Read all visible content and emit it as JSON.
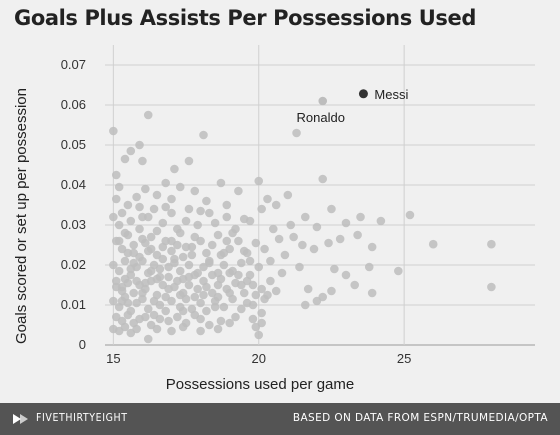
{
  "colors": {
    "background": "#f0f0f0",
    "grid": "#d0d0d0",
    "point": "#bdbdbd",
    "highlight": "#333333",
    "footer": "#545454"
  },
  "footer": {
    "brand": "FIVETHIRTYEIGHT",
    "logo_icon": "fivethirtyeight-logo-icon",
    "source": "BASED ON DATA FROM ESPN/TRUMEDIA/OPTA"
  },
  "chart_data": {
    "type": "scatter",
    "title": "Goals Plus Assists Per Possessions Used",
    "xlabel": "Possessions used per game",
    "ylabel": "Goals scored or set up per possession",
    "xlim": [
      14.3,
      29.5
    ],
    "ylim": [
      0,
      0.073
    ],
    "xticks": [
      15,
      20,
      25
    ],
    "xtick_labels": [
      "15",
      "20",
      "25"
    ],
    "yticks": [
      0,
      0.01,
      0.02,
      0.03,
      0.04,
      0.05,
      0.06,
      0.07
    ],
    "ytick_labels": [
      "0",
      "0.01",
      "0.02",
      "0.03",
      "0.04",
      "0.05",
      "0.06",
      "0.07"
    ],
    "grid": true,
    "highlighted": [
      {
        "label": "Messi",
        "x": 23.6,
        "y": 0.0628
      },
      {
        "label": "Ronaldo",
        "x": 22.2,
        "y": 0.061
      }
    ],
    "points": [
      [
        15.0,
        0.0535
      ],
      [
        15.1,
        0.0425
      ],
      [
        15.2,
        0.0395
      ],
      [
        15.4,
        0.0465
      ],
      [
        15.6,
        0.0485
      ],
      [
        15.9,
        0.05
      ],
      [
        16.2,
        0.0575
      ],
      [
        16.0,
        0.046
      ],
      [
        17.1,
        0.044
      ],
      [
        17.6,
        0.046
      ],
      [
        18.1,
        0.0525
      ],
      [
        15.1,
        0.0365
      ],
      [
        15.3,
        0.033
      ],
      [
        15.5,
        0.035
      ],
      [
        15.8,
        0.037
      ],
      [
        16.1,
        0.039
      ],
      [
        16.5,
        0.0375
      ],
      [
        16.8,
        0.0405
      ],
      [
        17.0,
        0.0365
      ],
      [
        17.3,
        0.0395
      ],
      [
        17.8,
        0.0385
      ],
      [
        18.2,
        0.036
      ],
      [
        18.7,
        0.0405
      ],
      [
        19.3,
        0.0385
      ],
      [
        20.0,
        0.041
      ],
      [
        20.3,
        0.0365
      ],
      [
        20.6,
        0.035
      ],
      [
        21.0,
        0.0375
      ],
      [
        21.3,
        0.053
      ],
      [
        22.2,
        0.0415
      ],
      [
        15.0,
        0.032
      ],
      [
        15.2,
        0.03
      ],
      [
        15.4,
        0.028
      ],
      [
        15.6,
        0.031
      ],
      [
        15.9,
        0.029
      ],
      [
        16.2,
        0.032
      ],
      [
        16.4,
        0.034
      ],
      [
        16.7,
        0.0305
      ],
      [
        17.0,
        0.033
      ],
      [
        17.2,
        0.029
      ],
      [
        17.5,
        0.031
      ],
      [
        17.9,
        0.03
      ],
      [
        18.3,
        0.033
      ],
      [
        18.5,
        0.0305
      ],
      [
        18.9,
        0.032
      ],
      [
        19.2,
        0.029
      ],
      [
        19.7,
        0.031
      ],
      [
        20.1,
        0.034
      ],
      [
        20.5,
        0.029
      ],
      [
        21.1,
        0.03
      ],
      [
        21.6,
        0.032
      ],
      [
        22.0,
        0.0295
      ],
      [
        22.5,
        0.034
      ],
      [
        23.0,
        0.0305
      ],
      [
        23.5,
        0.032
      ],
      [
        24.2,
        0.031
      ],
      [
        25.2,
        0.0325
      ],
      [
        15.1,
        0.026
      ],
      [
        15.3,
        0.024
      ],
      [
        15.5,
        0.023
      ],
      [
        15.7,
        0.025
      ],
      [
        15.9,
        0.022
      ],
      [
        16.1,
        0.0255
      ],
      [
        16.3,
        0.024
      ],
      [
        16.5,
        0.0225
      ],
      [
        16.8,
        0.026
      ],
      [
        17.0,
        0.0235
      ],
      [
        17.2,
        0.025
      ],
      [
        17.4,
        0.022
      ],
      [
        17.7,
        0.0245
      ],
      [
        18.0,
        0.026
      ],
      [
        18.2,
        0.023
      ],
      [
        18.4,
        0.025
      ],
      [
        18.7,
        0.0225
      ],
      [
        19.0,
        0.024
      ],
      [
        19.3,
        0.026
      ],
      [
        19.6,
        0.023
      ],
      [
        19.9,
        0.0255
      ],
      [
        20.2,
        0.024
      ],
      [
        20.7,
        0.0265
      ],
      [
        21.2,
        0.027
      ],
      [
        21.5,
        0.025
      ],
      [
        21.9,
        0.024
      ],
      [
        22.4,
        0.0255
      ],
      [
        22.8,
        0.0265
      ],
      [
        23.4,
        0.0275
      ],
      [
        23.9,
        0.0245
      ],
      [
        26.0,
        0.0252
      ],
      [
        28.0,
        0.0252
      ],
      [
        15.0,
        0.02
      ],
      [
        15.2,
        0.0185
      ],
      [
        15.4,
        0.021
      ],
      [
        15.6,
        0.0175
      ],
      [
        15.8,
        0.0195
      ],
      [
        16.0,
        0.021
      ],
      [
        16.2,
        0.018
      ],
      [
        16.4,
        0.02
      ],
      [
        16.6,
        0.019
      ],
      [
        16.9,
        0.017
      ],
      [
        17.1,
        0.0205
      ],
      [
        17.3,
        0.0185
      ],
      [
        17.6,
        0.02
      ],
      [
        17.8,
        0.0175
      ],
      [
        18.1,
        0.0195
      ],
      [
        18.3,
        0.021
      ],
      [
        18.6,
        0.018
      ],
      [
        18.8,
        0.02
      ],
      [
        19.1,
        0.0185
      ],
      [
        19.4,
        0.0205
      ],
      [
        19.7,
        0.0175
      ],
      [
        20.0,
        0.0195
      ],
      [
        20.4,
        0.021
      ],
      [
        20.8,
        0.018
      ],
      [
        21.4,
        0.0195
      ],
      [
        22.6,
        0.019
      ],
      [
        23.0,
        0.0175
      ],
      [
        23.8,
        0.0195
      ],
      [
        24.8,
        0.0185
      ],
      [
        15.1,
        0.016
      ],
      [
        15.3,
        0.0145
      ],
      [
        15.5,
        0.0155
      ],
      [
        15.7,
        0.013
      ],
      [
        15.9,
        0.015
      ],
      [
        16.1,
        0.014
      ],
      [
        16.3,
        0.016
      ],
      [
        16.5,
        0.0125
      ],
      [
        16.7,
        0.015
      ],
      [
        16.9,
        0.014
      ],
      [
        17.2,
        0.016
      ],
      [
        17.4,
        0.013
      ],
      [
        17.6,
        0.015
      ],
      [
        17.9,
        0.014
      ],
      [
        18.1,
        0.016
      ],
      [
        18.4,
        0.013
      ],
      [
        18.6,
        0.015
      ],
      [
        18.9,
        0.014
      ],
      [
        19.2,
        0.0155
      ],
      [
        19.5,
        0.013
      ],
      [
        19.8,
        0.015
      ],
      [
        20.1,
        0.014
      ],
      [
        20.4,
        0.016
      ],
      [
        21.7,
        0.014
      ],
      [
        22.2,
        0.012
      ],
      [
        22.5,
        0.0135
      ],
      [
        23.3,
        0.015
      ],
      [
        23.9,
        0.013
      ],
      [
        28.0,
        0.0145
      ],
      [
        15.0,
        0.011
      ],
      [
        15.2,
        0.0095
      ],
      [
        15.4,
        0.012
      ],
      [
        15.6,
        0.0085
      ],
      [
        15.8,
        0.0105
      ],
      [
        16.0,
        0.0115
      ],
      [
        16.2,
        0.009
      ],
      [
        16.4,
        0.011
      ],
      [
        16.6,
        0.01
      ],
      [
        16.8,
        0.0085
      ],
      [
        17.0,
        0.011
      ],
      [
        17.3,
        0.0095
      ],
      [
        17.5,
        0.0115
      ],
      [
        17.7,
        0.009
      ],
      [
        18.0,
        0.0105
      ],
      [
        18.2,
        0.0085
      ],
      [
        18.5,
        0.011
      ],
      [
        18.8,
        0.0095
      ],
      [
        19.1,
        0.0115
      ],
      [
        19.4,
        0.009
      ],
      [
        19.8,
        0.01
      ],
      [
        20.1,
        0.008
      ],
      [
        20.2,
        0.0115
      ],
      [
        21.6,
        0.01
      ],
      [
        22.0,
        0.011
      ],
      [
        15.1,
        0.007
      ],
      [
        15.3,
        0.006
      ],
      [
        15.5,
        0.0075
      ],
      [
        15.7,
        0.0055
      ],
      [
        15.9,
        0.0065
      ],
      [
        16.1,
        0.007
      ],
      [
        16.3,
        0.005
      ],
      [
        16.6,
        0.0065
      ],
      [
        16.9,
        0.006
      ],
      [
        17.2,
        0.007
      ],
      [
        17.5,
        0.0055
      ],
      [
        18.0,
        0.0065
      ],
      [
        18.3,
        0.005
      ],
      [
        18.7,
        0.006
      ],
      [
        19.0,
        0.0055
      ],
      [
        19.8,
        0.0065
      ],
      [
        20.1,
        0.0055
      ],
      [
        15.0,
        0.004
      ],
      [
        15.2,
        0.0035
      ],
      [
        15.4,
        0.0045
      ],
      [
        15.6,
        0.003
      ],
      [
        15.8,
        0.004
      ],
      [
        16.2,
        0.0015
      ],
      [
        16.5,
        0.004
      ],
      [
        17.0,
        0.0035
      ],
      [
        17.4,
        0.0045
      ],
      [
        18.0,
        0.0035
      ],
      [
        18.6,
        0.004
      ],
      [
        19.9,
        0.0045
      ],
      [
        20.0,
        0.0025
      ],
      [
        15.1,
        0.0145
      ],
      [
        15.3,
        0.0135
      ],
      [
        15.6,
        0.019
      ],
      [
        15.8,
        0.016
      ],
      [
        16.0,
        0.013
      ],
      [
        16.3,
        0.0185
      ],
      [
        16.7,
        0.0215
      ],
      [
        16.9,
        0.0195
      ],
      [
        17.1,
        0.0145
      ],
      [
        17.3,
        0.0125
      ],
      [
        17.6,
        0.017
      ],
      [
        17.8,
        0.012
      ],
      [
        18.1,
        0.0125
      ],
      [
        18.4,
        0.0175
      ],
      [
        18.7,
        0.0165
      ],
      [
        19.0,
        0.013
      ],
      [
        19.3,
        0.0175
      ],
      [
        19.6,
        0.016
      ],
      [
        19.9,
        0.0125
      ],
      [
        20.3,
        0.0125
      ],
      [
        15.2,
        0.026
      ],
      [
        15.5,
        0.0275
      ],
      [
        16.0,
        0.0265
      ],
      [
        16.5,
        0.0285
      ],
      [
        17.3,
        0.028
      ],
      [
        17.8,
        0.027
      ],
      [
        18.6,
        0.0275
      ],
      [
        19.1,
        0.028
      ],
      [
        19.5,
        0.0235
      ],
      [
        20.9,
        0.0225
      ],
      [
        15.4,
        0.0165
      ],
      [
        15.7,
        0.0205
      ],
      [
        16.2,
        0.0235
      ],
      [
        16.6,
        0.017
      ],
      [
        17.1,
        0.0215
      ],
      [
        17.5,
        0.0245
      ],
      [
        18.2,
        0.0145
      ],
      [
        18.9,
        0.026
      ],
      [
        19.4,
        0.015
      ],
      [
        20.6,
        0.0135
      ],
      [
        16.4,
        0.0075
      ],
      [
        16.8,
        0.012
      ],
      [
        17.4,
        0.0085
      ],
      [
        17.8,
        0.0075
      ],
      [
        18.5,
        0.0095
      ],
      [
        19.2,
        0.007
      ],
      [
        19.6,
        0.0105
      ],
      [
        16.0,
        0.032
      ],
      [
        16.8,
        0.0345
      ],
      [
        17.6,
        0.034
      ],
      [
        18.0,
        0.0335
      ],
      [
        18.9,
        0.035
      ],
      [
        19.5,
        0.0315
      ],
      [
        15.9,
        0.0345
      ],
      [
        16.3,
        0.027
      ],
      [
        17.0,
        0.026
      ],
      [
        17.7,
        0.0225
      ],
      [
        18.3,
        0.0205
      ],
      [
        18.8,
        0.023
      ],
      [
        19.7,
        0.021
      ],
      [
        15.3,
        0.011
      ],
      [
        15.5,
        0.0105
      ],
      [
        16.1,
        0.0155
      ],
      [
        16.5,
        0.0165
      ],
      [
        17.9,
        0.018
      ],
      [
        18.6,
        0.012
      ],
      [
        19.0,
        0.018
      ],
      [
        15.7,
        0.023
      ],
      [
        16.7,
        0.0245
      ],
      [
        17.4,
        0.0165
      ]
    ]
  }
}
